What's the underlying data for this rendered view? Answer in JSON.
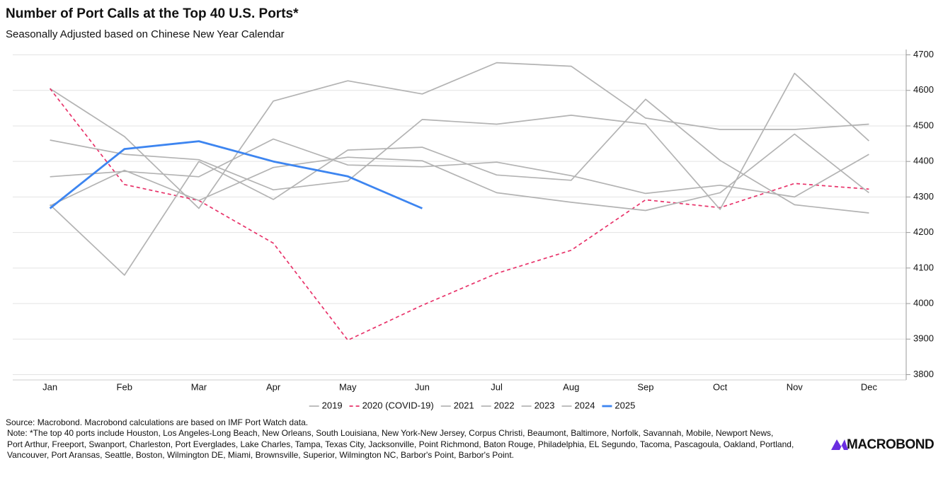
{
  "chart_data": {
    "type": "line",
    "title": "Number of Port Calls at the Top 40 U.S. Ports*",
    "subtitle": "Seasonally Adjusted based on Chinese New Year Calendar",
    "categories": [
      "Jan",
      "Feb",
      "Mar",
      "Apr",
      "May",
      "Jun",
      "Jul",
      "Aug",
      "Sep",
      "Oct",
      "Nov",
      "Dec"
    ],
    "ylim": [
      3785,
      4715
    ],
    "yticks": [
      3800,
      3900,
      4000,
      4100,
      4200,
      4300,
      4400,
      4500,
      4600,
      4700
    ],
    "grid": true,
    "series": [
      {
        "name": "2019",
        "color": "#b3b3b3",
        "values": [
          4605,
          4470,
          4268,
          4570,
          4627,
          4590,
          4678,
          4668,
          4522,
          4490,
          4490,
          4505
        ]
      },
      {
        "name": "2020 (COVID-19)",
        "color": "#e8336a",
        "dashed": true,
        "values": [
          4605,
          4335,
          4290,
          4170,
          3897,
          3995,
          4085,
          4150,
          4292,
          4270,
          4338,
          4322
        ]
      },
      {
        "name": "2021",
        "color": "#b3b3b3",
        "values": [
          4460,
          4420,
          4405,
          4320,
          4345,
          4518,
          4505,
          4530,
          4505,
          4265,
          4648,
          4458
        ]
      },
      {
        "name": "2022",
        "color": "#b3b3b3",
        "values": [
          4357,
          4372,
          4357,
          4463,
          4390,
          4385,
          4398,
          4360,
          4310,
          4333,
          4300,
          4420
        ]
      },
      {
        "name": "2023",
        "color": "#b3b3b3",
        "values": [
          4275,
          4375,
          4290,
          4383,
          4412,
          4402,
          4312,
          4285,
          4262,
          4312,
          4477,
          4312
        ]
      },
      {
        "name": "2024",
        "color": "#b3b3b3",
        "values": [
          4278,
          4080,
          4400,
          4293,
          4432,
          4440,
          4362,
          4347,
          4575,
          4403,
          4278,
          4255
        ]
      },
      {
        "name": "2025",
        "color": "#3d85f0",
        "linewidth": 2.8,
        "values": [
          4268,
          4435,
          4457,
          4400,
          4358,
          4268,
          null,
          null,
          null,
          null,
          null,
          null
        ]
      }
    ],
    "source": "Source: Macrobond. Macrobond calculations are based on IMF Port Watch data.",
    "note_lines": [
      "Note: *The top 40 ports include Houston, Los Angeles-Long Beach, New Orleans, South Louisiana, New York-New Jersey, Corpus Christi, Beaumont, Baltimore, Norfolk, Savannah, Mobile, Newport News,",
      "Port Arthur, Freeport, Swanport, Charleston, Port Everglades, Lake Charles, Tampa, Texas City, Jacksonville, Point Richmond, Baton Rouge, Philadelphia, EL Segundo, Tacoma, Pascagoula, Oakland, Portland,",
      "Vancouver, Port Aransas, Seattle, Boston, Wilmington DE, Miami, Brownsville, Superior, Wilmington NC, Barbor's Point, Barbor's Point."
    ],
    "logo": "MACROBOND"
  }
}
